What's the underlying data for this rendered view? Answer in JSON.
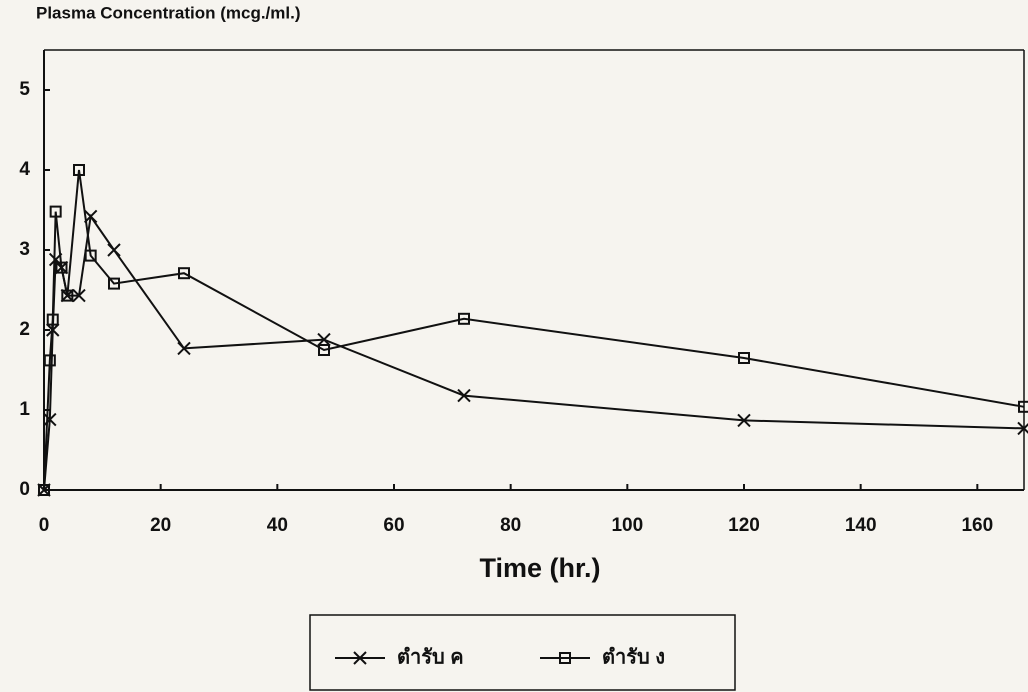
{
  "chart_data": {
    "type": "line",
    "title": "Plasma Concentration (mcg./ml.)",
    "x_label": "Time (hr.)",
    "xlim": [
      0,
      168
    ],
    "xticks": [
      0,
      20,
      40,
      60,
      80,
      100,
      120,
      140,
      160
    ],
    "ylim": [
      0,
      5.5
    ],
    "yticks": [
      0,
      1,
      2,
      3,
      4,
      5
    ],
    "series": [
      {
        "name": "ตำรับ ค",
        "color": "#111111",
        "marker": "x",
        "x": [
          0,
          1,
          1.5,
          2,
          3,
          4,
          6,
          8,
          12,
          24,
          48,
          72,
          120,
          168
        ],
        "values": [
          0,
          0.88,
          2.0,
          2.88,
          2.78,
          2.43,
          2.43,
          3.42,
          3.0,
          1.77,
          1.88,
          1.18,
          0.87,
          0.77
        ]
      },
      {
        "name": "ตำรับ ง",
        "color": "#111111",
        "marker": "square",
        "x": [
          0,
          1,
          1.5,
          2,
          3,
          4,
          6,
          8,
          12,
          24,
          48,
          72,
          120,
          168
        ],
        "values": [
          0,
          1.62,
          2.13,
          3.48,
          2.78,
          2.43,
          4.0,
          2.93,
          2.58,
          2.71,
          1.75,
          2.14,
          1.65,
          1.04
        ]
      }
    ]
  }
}
